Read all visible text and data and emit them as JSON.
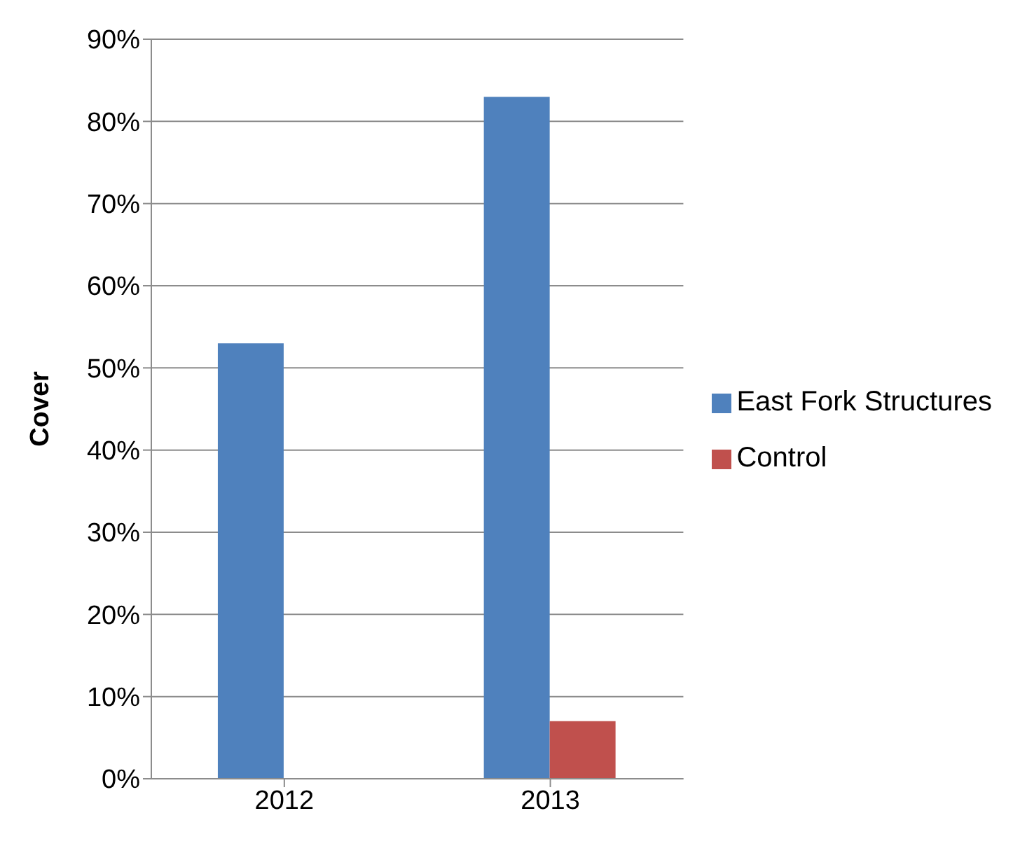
{
  "chart_data": {
    "type": "bar",
    "ylabel": "Cover",
    "categories": [
      "2012",
      "2013"
    ],
    "series": [
      {
        "name": "East Fork Structures",
        "color": "#4f81bd",
        "values": [
          53,
          83
        ]
      },
      {
        "name": "Control",
        "color": "#c0504d",
        "values": [
          0,
          7
        ]
      }
    ],
    "ylim": [
      0,
      90
    ],
    "yticks": [
      {
        "value": 0,
        "label": "0%"
      },
      {
        "value": 10,
        "label": "10%"
      },
      {
        "value": 20,
        "label": "20%"
      },
      {
        "value": 30,
        "label": "30%"
      },
      {
        "value": 40,
        "label": "40%"
      },
      {
        "value": 50,
        "label": "50%"
      },
      {
        "value": 60,
        "label": "60%"
      },
      {
        "value": 70,
        "label": "70%"
      },
      {
        "value": 80,
        "label": "80%"
      },
      {
        "value": 90,
        "label": "90%"
      }
    ],
    "grid": "y",
    "legend": "right"
  }
}
